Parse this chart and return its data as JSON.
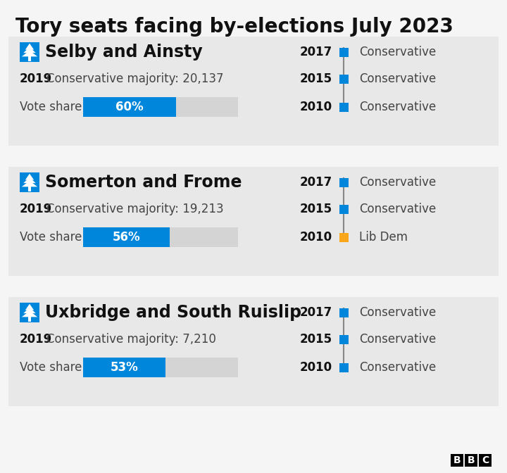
{
  "title": "Tory seats facing by-elections July 2023",
  "title_fontsize": 20,
  "background_color": "#f5f5f5",
  "constituencies": [
    {
      "name": "Selby and Ainsty",
      "majority_year": "2019",
      "majority_label": "Conservative majority: 20,137",
      "vote_share": 60,
      "vote_share_label": "60%",
      "history": [
        {
          "year": "2017",
          "party": "Conservative",
          "color": "#0087DC"
        },
        {
          "year": "2015",
          "party": "Conservative",
          "color": "#0087DC"
        },
        {
          "year": "2010",
          "party": "Conservative",
          "color": "#0087DC"
        }
      ]
    },
    {
      "name": "Somerton and Frome",
      "majority_year": "2019",
      "majority_label": "Conservative majority: 19,213",
      "vote_share": 56,
      "vote_share_label": "56%",
      "history": [
        {
          "year": "2017",
          "party": "Conservative",
          "color": "#0087DC"
        },
        {
          "year": "2015",
          "party": "Conservative",
          "color": "#0087DC"
        },
        {
          "year": "2010",
          "party": "Lib Dem",
          "color": "#FAA61A"
        }
      ]
    },
    {
      "name": "Uxbridge and South Ruislip",
      "majority_year": "2019",
      "majority_label": "Conservative majority: 7,210",
      "vote_share": 53,
      "vote_share_label": "53%",
      "history": [
        {
          "year": "2017",
          "party": "Conservative",
          "color": "#0087DC"
        },
        {
          "year": "2015",
          "party": "Conservative",
          "color": "#0087DC"
        },
        {
          "year": "2010",
          "party": "Conservative",
          "color": "#0087DC"
        }
      ]
    }
  ],
  "bar_bg_color": "#d4d4d4",
  "bar_fg_color": "#0087DC",
  "bar_text_color": "#ffffff",
  "conservative_color": "#0087DC",
  "libdem_color": "#FAA61A",
  "icon_color": "#0087DC",
  "section_divider_color": "#cccccc",
  "vote_share_label": "Vote share:",
  "section_bg_color": "#e8e8e8",
  "timeline_line_color": "#888888"
}
